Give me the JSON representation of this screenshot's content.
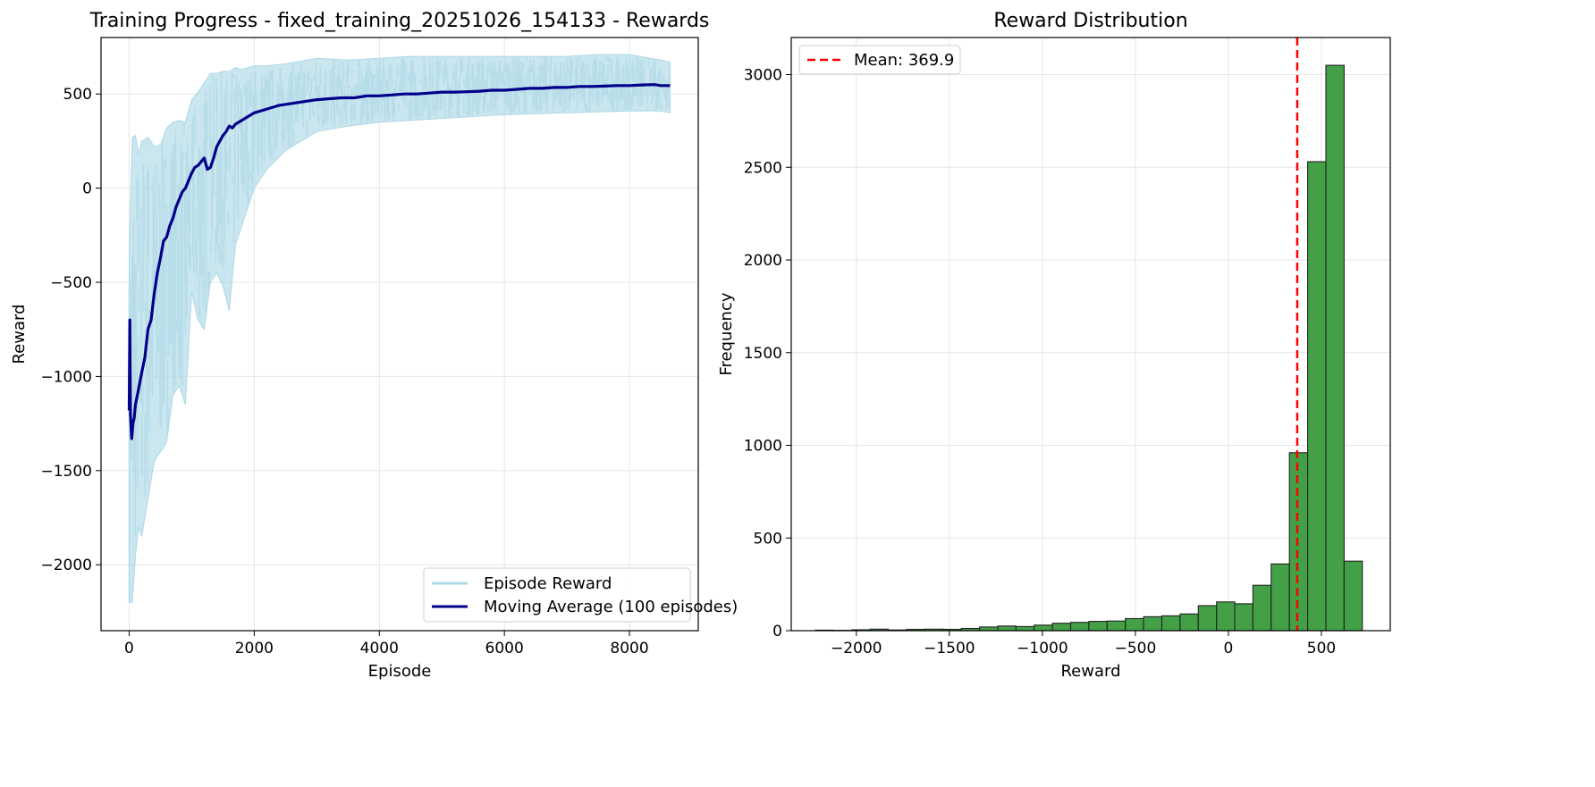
{
  "chart_data": [
    {
      "type": "line",
      "title": "Training Progress - fixed_training_20251026_154133 - Rewards",
      "xlabel": "Episode",
      "ylabel": "Reward",
      "xlim": [
        -450,
        9100
      ],
      "ylim": [
        -2350,
        800
      ],
      "x_ticks": [
        0,
        2000,
        4000,
        6000,
        8000
      ],
      "x_tick_labels": [
        "0",
        "2000",
        "4000",
        "6000",
        "8000"
      ],
      "y_ticks": [
        -2000,
        -1500,
        -1000,
        -500,
        0,
        500
      ],
      "y_tick_labels": [
        "−2000",
        "−1500",
        "−1000",
        "−500",
        "0",
        "500"
      ],
      "grid": true,
      "legend_position": "lower right",
      "series": [
        {
          "name": "Episode Reward",
          "color": "#add8e6",
          "style": "noisy band (min/max envelope per episode range)",
          "x": [
            0,
            50,
            100,
            150,
            200,
            300,
            400,
            500,
            600,
            700,
            800,
            900,
            1000,
            1100,
            1200,
            1300,
            1400,
            1500,
            1600,
            1700,
            1800,
            2000,
            2200,
            2500,
            3000,
            3500,
            4000,
            4500,
            5000,
            5500,
            6000,
            6500,
            7000,
            7500,
            8000,
            8500,
            8650
          ],
          "upper": [
            -370,
            270,
            280,
            180,
            250,
            270,
            220,
            230,
            320,
            350,
            360,
            350,
            470,
            510,
            560,
            610,
            610,
            620,
            620,
            640,
            630,
            650,
            650,
            660,
            690,
            680,
            690,
            700,
            700,
            700,
            700,
            700,
            700,
            710,
            710,
            680,
            670
          ],
          "lower": [
            -2200,
            -2200,
            -1950,
            -1800,
            -1850,
            -1650,
            -1450,
            -1400,
            -1350,
            -1100,
            -1050,
            -1150,
            -550,
            -700,
            -750,
            -500,
            -450,
            -520,
            -650,
            -300,
            -200,
            0,
            100,
            200,
            300,
            330,
            350,
            360,
            370,
            380,
            390,
            395,
            400,
            405,
            410,
            410,
            400
          ]
        },
        {
          "name": "Moving Average (100 episodes)",
          "color": "#00008b",
          "x": [
            0,
            10,
            20,
            40,
            60,
            80,
            100,
            130,
            160,
            200,
            250,
            300,
            350,
            400,
            450,
            500,
            550,
            600,
            650,
            700,
            750,
            800,
            850,
            900,
            950,
            1000,
            1050,
            1100,
            1150,
            1200,
            1250,
            1300,
            1350,
            1400,
            1450,
            1500,
            1550,
            1600,
            1650,
            1700,
            1800,
            1900,
            2000,
            2200,
            2400,
            2600,
            2800,
            3000,
            3200,
            3400,
            3600,
            3800,
            4000,
            4200,
            4400,
            4600,
            4800,
            5000,
            5200,
            5400,
            5600,
            5800,
            6000,
            6200,
            6400,
            6600,
            6800,
            7000,
            7200,
            7400,
            7600,
            7800,
            8000,
            8200,
            8400,
            8500,
            8650
          ],
          "y": [
            -1180,
            -700,
            -1200,
            -1330,
            -1250,
            -1220,
            -1150,
            -1100,
            -1050,
            -980,
            -900,
            -750,
            -700,
            -560,
            -450,
            -370,
            -280,
            -260,
            -200,
            -160,
            -100,
            -60,
            -20,
            0,
            40,
            80,
            110,
            120,
            140,
            160,
            100,
            110,
            160,
            220,
            250,
            280,
            300,
            330,
            320,
            340,
            360,
            380,
            400,
            420,
            440,
            450,
            460,
            470,
            475,
            480,
            480,
            490,
            490,
            495,
            500,
            500,
            505,
            510,
            510,
            512,
            515,
            520,
            520,
            525,
            530,
            530,
            535,
            535,
            540,
            540,
            542,
            545,
            545,
            548,
            550,
            545,
            545
          ]
        }
      ]
    },
    {
      "type": "bar",
      "title": "Reward Distribution",
      "xlabel": "Reward",
      "ylabel": "Frequency",
      "xlim": [
        -2350,
        870
      ],
      "ylim": [
        0,
        3200
      ],
      "x_ticks": [
        -2000,
        -1500,
        -1000,
        -500,
        0,
        500
      ],
      "x_tick_labels": [
        "−2000",
        "−1500",
        "−1000",
        "−500",
        "0",
        "500"
      ],
      "y_ticks": [
        0,
        500,
        1000,
        1500,
        2000,
        2500,
        3000
      ],
      "y_tick_labels": [
        "0",
        "500",
        "1000",
        "1500",
        "2000",
        "2500",
        "3000"
      ],
      "grid": true,
      "legend_position": "upper left",
      "bar_color": "#43a047",
      "bin_edges": [
        -2220,
        -2122,
        -2024,
        -1926,
        -1828,
        -1730,
        -1632,
        -1534,
        -1436,
        -1338,
        -1240,
        -1142,
        -1044,
        -946,
        -848,
        -750,
        -652,
        -554,
        -456,
        -358,
        -260,
        -162,
        -64,
        34,
        132,
        230,
        328,
        426,
        524,
        622,
        720
      ],
      "values": [
        3,
        2,
        5,
        8,
        4,
        7,
        8,
        7,
        12,
        20,
        25,
        22,
        30,
        40,
        45,
        50,
        52,
        65,
        75,
        80,
        90,
        135,
        155,
        145,
        245,
        360,
        960,
        2530,
        3050,
        375
      ],
      "mean_line": {
        "value": 369.9,
        "label": "Mean: 369.9",
        "color": "#ff0000"
      }
    }
  ]
}
